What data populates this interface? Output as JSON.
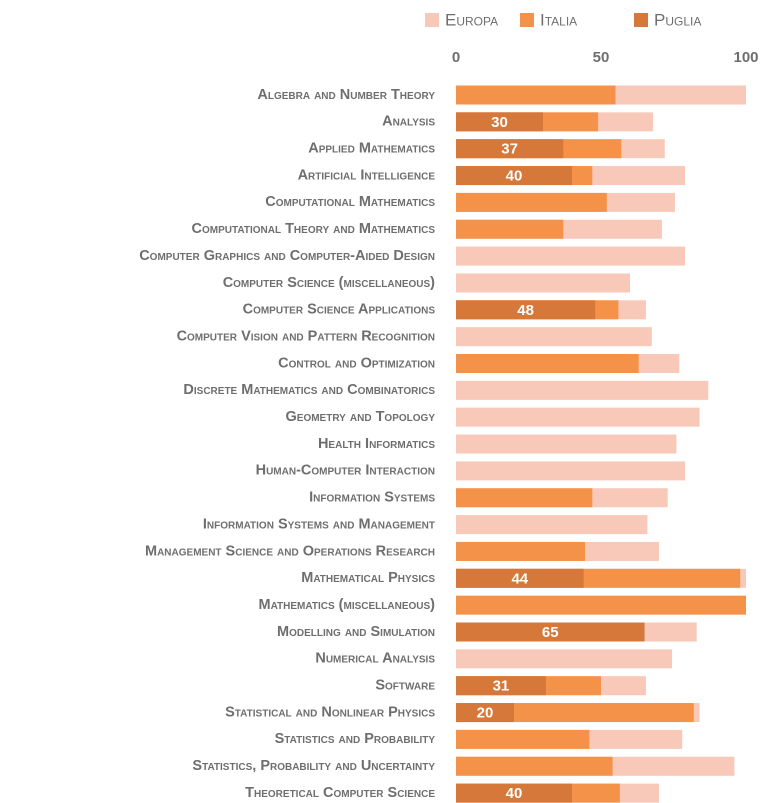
{
  "chart_data": {
    "type": "bar",
    "orientation": "horizontal",
    "overlap": true,
    "categories": [
      "Algebra and Number Theory",
      "Analysis",
      "Applied Mathematics",
      "Artificial Intelligence",
      "Computational Mathematics",
      "Computational Theory and Mathematics",
      "Computer Graphics and Computer-Aided Design",
      "Computer Science (miscellaneous)",
      "Computer Science Applications",
      "Computer Vision and Pattern Recognition",
      "Control and Optimization",
      "Discrete Mathematics and Combinatorics",
      "Geometry and Topology",
      "Health Informatics",
      "Human-Computer Interaction",
      "Information Systems",
      "Information Systems and Management",
      "Management Science and Operations Research",
      "Mathematical Physics",
      "Mathematics (miscellaneous)",
      "Modelling and Simulation",
      "Numerical Analysis",
      "Software",
      "Statistical and Nonlinear Physics",
      "Statistics and Probability",
      "Statistics, Probability and Uncertainty",
      "Theoretical Computer Science"
    ],
    "series": [
      {
        "name": "Europa",
        "color": "#f8c9b8",
        "values": [
          100,
          68,
          72,
          79,
          75.5,
          71,
          79,
          60,
          65.5,
          67.5,
          77,
          87,
          84,
          76,
          79,
          73,
          66,
          70,
          100,
          null,
          83,
          74.5,
          65.5,
          84,
          78,
          96,
          70
        ]
      },
      {
        "name": "Italia",
        "color": "#f5924a",
        "values": [
          55,
          49,
          57,
          47,
          52,
          37,
          null,
          null,
          56,
          null,
          63,
          null,
          null,
          null,
          null,
          47,
          null,
          44.5,
          98,
          100,
          null,
          null,
          50,
          82,
          46,
          54,
          56.5
        ]
      },
      {
        "name": "Puglia",
        "color": "#d5783a",
        "values": [
          null,
          30,
          37,
          40,
          null,
          null,
          null,
          null,
          48,
          null,
          null,
          null,
          null,
          null,
          null,
          null,
          null,
          null,
          44,
          null,
          65,
          null,
          31,
          20,
          null,
          null,
          40
        ],
        "show_labels": true
      }
    ],
    "xlim": [
      0,
      100
    ],
    "xticks": [
      0,
      50,
      100
    ],
    "grid": false,
    "legend": "top"
  }
}
